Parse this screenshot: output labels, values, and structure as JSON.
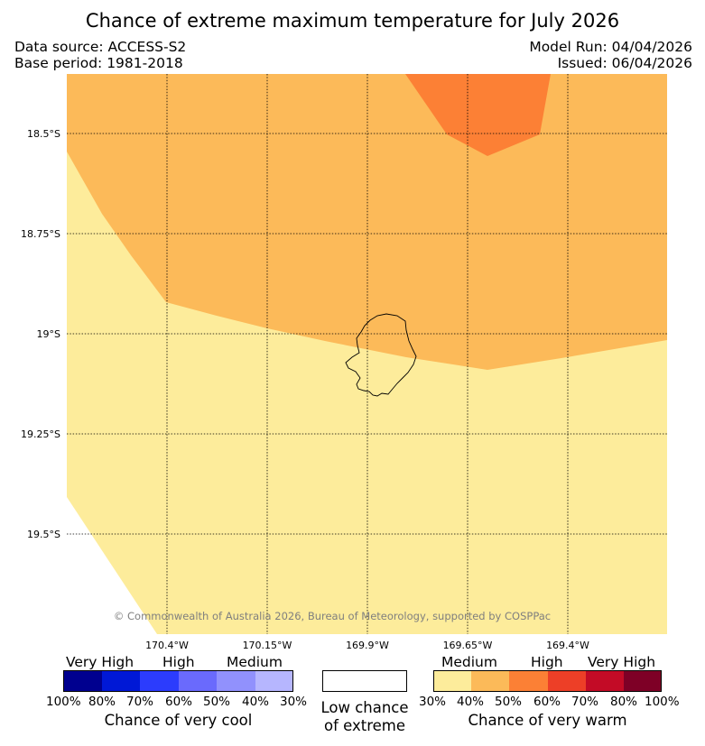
{
  "title": "Chance of extreme maximum temperature for July 2026",
  "data_source": "Data source: ACCESS-S2",
  "base_period": "Base period: 1981-2018",
  "model_run": "Model Run: 04/04/2026",
  "issued": "Issued: 06/04/2026",
  "lat_labels": [
    "18.5°S",
    "18.75°S",
    "19°S",
    "19.25°S",
    "19.5°S"
  ],
  "lon_labels": [
    "170.4°W",
    "170.15°W",
    "169.9°W",
    "169.65°W",
    "169.4°W"
  ],
  "copyright": "© Commonwealth of Australia 2026, Bureau of Meteorology, supported by COSPPac",
  "legend": {
    "cool": {
      "categories": [
        "Very High",
        "High",
        "Medium"
      ],
      "percents": [
        "100%",
        "80%",
        "70%",
        "60%",
        "50%",
        "40%",
        "30%"
      ],
      "colors": [
        "#00008f",
        "#0018d6",
        "#2c3cfd",
        "#6a6afd",
        "#9191fd",
        "#b6b6fe"
      ],
      "caption": "Chance of very cool"
    },
    "low": {
      "line1": "Low chance",
      "line2": "of extreme"
    },
    "warm": {
      "categories": [
        "Medium",
        "High",
        "Very High"
      ],
      "percents": [
        "30%",
        "40%",
        "50%",
        "60%",
        "70%",
        "80%",
        "100%"
      ],
      "colors": [
        "#fdec9b",
        "#fcba59",
        "#fc8035",
        "#ed3f27",
        "#c30b26",
        "#7e0026"
      ],
      "caption": "Chance of very warm"
    }
  },
  "map": {
    "colors": {
      "medium": "#fdec9b",
      "medium_high": "#fcba59",
      "high": "#fc8035"
    }
  }
}
